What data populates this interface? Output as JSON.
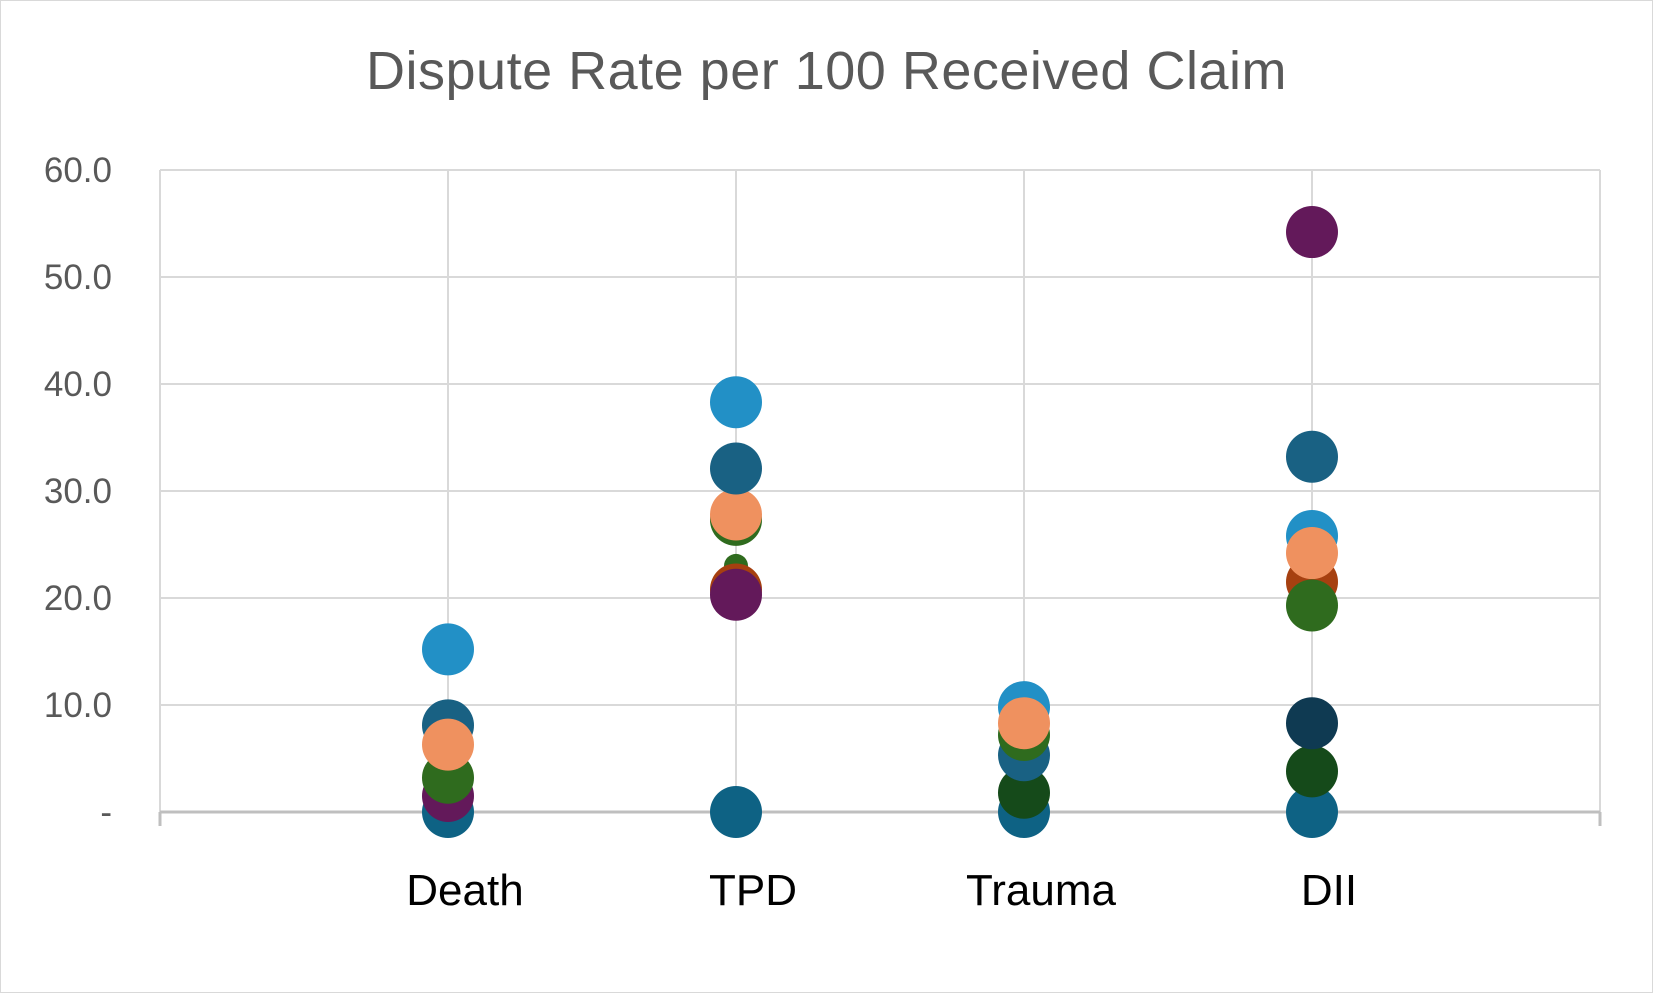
{
  "chart_data": {
    "type": "scatter",
    "title": "Dispute Rate per 100 Received Claim",
    "xlabel": "",
    "ylabel": "",
    "categories": [
      "Death",
      "TPD",
      "Trauma",
      "DII"
    ],
    "ylim": [
      0,
      60
    ],
    "yticks": [
      0,
      10,
      20,
      30,
      40,
      50,
      60
    ],
    "ytick_labels": [
      "-",
      "10.0",
      "20.0",
      "30.0",
      "40.0",
      "50.0",
      "60.0"
    ],
    "grid": true,
    "legend": "none",
    "points": [
      {
        "category": "Death",
        "y": 0.0,
        "color": "#0e6284",
        "size": "large"
      },
      {
        "category": "Death",
        "y": 1.5,
        "color": "#63195a",
        "size": "large"
      },
      {
        "category": "Death",
        "y": 3.2,
        "color": "#2f6b1e",
        "size": "large"
      },
      {
        "category": "Death",
        "y": 8.1,
        "color": "#196183",
        "size": "large"
      },
      {
        "category": "Death",
        "y": 6.3,
        "color": "#ef915f",
        "size": "large"
      },
      {
        "category": "Death",
        "y": 15.2,
        "color": "#2290c6",
        "size": "large"
      },
      {
        "category": "TPD",
        "y": 0.0,
        "color": "#0e6284",
        "size": "large"
      },
      {
        "category": "TPD",
        "y": 23.0,
        "color": "#2f6b1e",
        "size": "small"
      },
      {
        "category": "TPD",
        "y": 20.8,
        "color": "#a64010",
        "size": "large"
      },
      {
        "category": "TPD",
        "y": 20.3,
        "color": "#63195a",
        "size": "large"
      },
      {
        "category": "TPD",
        "y": 27.3,
        "color": "#2f6b1e",
        "size": "large"
      },
      {
        "category": "TPD",
        "y": 27.8,
        "color": "#ef915f",
        "size": "large"
      },
      {
        "category": "TPD",
        "y": 32.1,
        "color": "#196183",
        "size": "large"
      },
      {
        "category": "TPD",
        "y": 38.3,
        "color": "#2290c6",
        "size": "large"
      },
      {
        "category": "Trauma",
        "y": 0.0,
        "color": "#0e6284",
        "size": "large"
      },
      {
        "category": "Trauma",
        "y": 1.8,
        "color": "#154a1a",
        "size": "large"
      },
      {
        "category": "Trauma",
        "y": 5.3,
        "color": "#196183",
        "size": "large"
      },
      {
        "category": "Trauma",
        "y": 9.8,
        "color": "#2290c6",
        "size": "large"
      },
      {
        "category": "Trauma",
        "y": 7.2,
        "color": "#2f6b1e",
        "size": "large"
      },
      {
        "category": "Trauma",
        "y": 8.3,
        "color": "#ef915f",
        "size": "large"
      },
      {
        "category": "DII",
        "y": 0.0,
        "color": "#0e6284",
        "size": "large"
      },
      {
        "category": "DII",
        "y": 3.8,
        "color": "#154a1a",
        "size": "large"
      },
      {
        "category": "DII",
        "y": 8.3,
        "color": "#0f3a52",
        "size": "large"
      },
      {
        "category": "DII",
        "y": 25.8,
        "color": "#2290c6",
        "size": "large"
      },
      {
        "category": "DII",
        "y": 21.5,
        "color": "#a64010",
        "size": "large"
      },
      {
        "category": "DII",
        "y": 19.3,
        "color": "#2f6b1e",
        "size": "large"
      },
      {
        "category": "DII",
        "y": 24.2,
        "color": "#ef915f",
        "size": "large"
      },
      {
        "category": "DII",
        "y": 33.2,
        "color": "#196183",
        "size": "large"
      },
      {
        "category": "DII",
        "y": 54.2,
        "color": "#63195a",
        "size": "large"
      }
    ]
  }
}
